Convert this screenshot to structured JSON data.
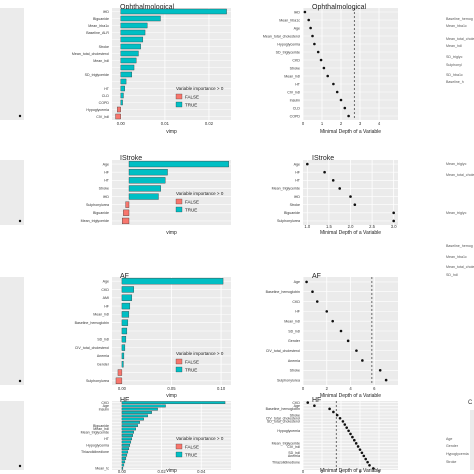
{
  "colors": {
    "panel_bg": "#ebebeb",
    "grid": "#ffffff",
    "false_fill": "#f8766d",
    "true_fill": "#00bfc4",
    "bar_outline": "#333333",
    "point": "#111111"
  },
  "legend": {
    "title": "Variable importance > 0",
    "false_label": "FALSE",
    "true_label": "TRUE",
    "placement": "bottom-right"
  },
  "chart_data": [
    {
      "type": "bar",
      "title": "Ophthalmological",
      "xlabel": "vimp",
      "xlim": [
        -0.002,
        0.025
      ],
      "xticks": [
        "0.00",
        "0.01",
        "0.02"
      ],
      "xtick_values": [
        0,
        0.01,
        0.02
      ],
      "categories": [
        "IHD",
        "Biguanide",
        "Mean_hba1c",
        "Baseline_ALR",
        "CKD",
        "Stroke",
        "Mean_total_cholesterol",
        "Mean_hdl",
        "Age",
        "SD_triglyceride",
        "Insulin",
        "HT",
        "CLD",
        "COPD",
        "Hypoglycemia",
        "CIV_hdl"
      ],
      "values": [
        0.024,
        0.009,
        0.006,
        0.0055,
        0.005,
        0.0045,
        0.004,
        0.0035,
        0.003,
        0.0025,
        0.0012,
        0.0009,
        0.0006,
        0.0004,
        -0.0008,
        -0.0012
      ],
      "labeled_categories": [
        "IHD",
        "Biguanide",
        "Mean_hba1c",
        "Baseline_ALR",
        "Stroke",
        "Mean_total_cholesterol",
        "Mean_hdl",
        "SD_triglyceride",
        "HT",
        "CLD",
        "COPD",
        "Hypoglycemia",
        "CIV_hdl"
      ],
      "importance_positive": [
        true,
        true,
        true,
        true,
        true,
        true,
        true,
        true,
        true,
        true,
        true,
        true,
        true,
        true,
        false,
        false
      ]
    },
    {
      "type": "scatter",
      "title": "Ophthalmological",
      "xlabel": "Minimal Depth of a Variable",
      "xlim": [
        0,
        5
      ],
      "xticks": [
        "0",
        "1",
        "2",
        "3",
        "4"
      ],
      "xtick_values": [
        0,
        1,
        2,
        3,
        4
      ],
      "threshold": 2.7,
      "categories": [
        "IHD",
        "Mean_hba1c",
        "Age",
        "Mean_total_cholesterol",
        "Hypoglycemia",
        "SD_triglyceride",
        "CKD",
        "Stroke",
        "Mean_hdl",
        "HT",
        "CIV_hdl",
        "Insulin",
        "CLD",
        "COPD"
      ],
      "labeled_categories": [
        "IHD",
        "Mean_hba1c",
        "Age",
        "Mean_total_cholesterol",
        "Hypoglycemia",
        "SD_triglyceride",
        "CKD",
        "Stroke",
        "Mean_hdl",
        "HT",
        "CIV_hdl",
        "Insulin",
        "CLD",
        "COPD"
      ],
      "values": [
        0.1,
        0.3,
        0.4,
        0.5,
        0.6,
        0.8,
        0.95,
        1.1,
        1.3,
        1.6,
        1.8,
        2.0,
        2.2,
        2.4
      ]
    },
    {
      "type": "bar",
      "title": "IStroke",
      "xlabel": "vimp",
      "xlim": [
        -0.015,
        0.09
      ],
      "xticks": [],
      "xtick_values": [],
      "categories": [
        "Age",
        "HF",
        "HT",
        "Stroke",
        "IHD",
        "Sulphonylurea",
        "Biguanide",
        "Mean_triglyceride"
      ],
      "values": [
        0.088,
        0.034,
        0.032,
        0.028,
        0.026,
        -0.003,
        -0.005,
        -0.006
      ],
      "labeled_categories": [
        "Age",
        "HF",
        "HT",
        "Stroke",
        "IHD",
        "Sulphonylurea",
        "Biguanide",
        "Mean_triglyceride"
      ],
      "importance_positive": [
        true,
        true,
        true,
        true,
        true,
        false,
        false,
        false
      ]
    },
    {
      "type": "scatter",
      "title": "IStroke",
      "xlabel": "Minimal Depth of a Variable",
      "xlim": [
        0.9,
        3.1
      ],
      "xticks": [
        "1.0",
        "1.5",
        "2.0",
        "2.5",
        "3.0"
      ],
      "xtick_values": [
        1.0,
        1.5,
        2.0,
        2.5,
        3.0
      ],
      "categories": [
        "Age",
        "HF",
        "HT",
        "Mean_triglyceride",
        "IHD",
        "Stroke",
        "Biguanide",
        "Sulphonylurea"
      ],
      "labeled_categories": [
        "Age",
        "HF",
        "HT",
        "Mean_triglyceride",
        "IHD",
        "Stroke",
        "Biguanide",
        "Sulphonylurea"
      ],
      "values": [
        1.0,
        1.4,
        1.6,
        1.75,
        2.0,
        2.1,
        3.0,
        3.0
      ]
    },
    {
      "type": "bar",
      "title": "AF",
      "xlabel": "vimp",
      "xlim": [
        -0.01,
        0.11
      ],
      "xticks": [
        "0.00",
        "0.05",
        "0.10"
      ],
      "xtick_values": [
        0,
        0.05,
        0.1
      ],
      "categories": [
        "Age",
        "CKD",
        "AMI",
        "HF",
        "Mean_hdl",
        "Baseline_hemoglobin",
        "Mean_tc/l",
        "SD_hdl",
        "CIV_total_cholesterol",
        "Anemia",
        "Gender",
        "Mean_hdl_2",
        "Sulphonylurea"
      ],
      "values": [
        0.102,
        0.012,
        0.01,
        0.008,
        0.007,
        0.006,
        0.005,
        0.004,
        0.003,
        0.002,
        0.0015,
        -0.004,
        -0.006
      ],
      "labeled_categories": [
        "Age",
        "CKD",
        "AMI",
        "HF",
        "Mean_hdl",
        "Baseline_hemoglobin",
        "SD_hdl",
        "CIV_total_cholesterol",
        "Anemia",
        "Gender",
        "Sulphonylurea"
      ],
      "importance_positive": [
        true,
        true,
        true,
        true,
        true,
        true,
        true,
        true,
        true,
        true,
        true,
        false,
        false
      ]
    },
    {
      "type": "scatter",
      "title": "AF",
      "xlabel": "Minimal Depth of a Variable",
      "xlim": [
        0,
        8
      ],
      "xticks": [
        "0",
        "2",
        "4",
        "6"
      ],
      "xtick_values": [
        0,
        2,
        4,
        6
      ],
      "threshold": 5.8,
      "categories": [
        "Age",
        "Baseline_hemoglobin",
        "CKD",
        "HF",
        "Mean_hdl",
        "SD_hdl",
        "Gender",
        "CIV_total_cholesterol",
        "Anemia",
        "Stroke",
        "Sulphonylurea"
      ],
      "labeled_categories": [
        "Age",
        "Baseline_hemoglobin",
        "CKD",
        "HF",
        "Mean_hdl",
        "SD_hdl",
        "Gender",
        "CIV_total_cholesterol",
        "Anemia",
        "Stroke",
        "Sulphonylurea"
      ],
      "values": [
        0.3,
        0.8,
        1.2,
        2.0,
        2.5,
        3.2,
        3.8,
        4.5,
        5.0,
        6.5,
        7.0
      ]
    },
    {
      "type": "bar",
      "title": "HF",
      "xlabel": "vimp",
      "xlim": [
        -0.005,
        0.055
      ],
      "xticks": [
        "0.00",
        "0.02",
        "0.04"
      ],
      "xtick_values": [
        0,
        0.02,
        0.04
      ],
      "categories": [
        "CKD",
        "Age",
        "Insulin",
        "IHD",
        "Gender",
        "Stroke",
        "SD_total_cholesterol",
        "Biguanide",
        "Mean_hdl",
        "Mean_triglyceride",
        "SD_hba1c",
        "HT",
        "Mean_hba1c",
        "Hypoglycemia",
        "Baseline_ALR",
        "Thiazolidinedione",
        "CIV_total",
        "Mean_total",
        "SD_hdl",
        "Anemia",
        "Mean_tc"
      ],
      "values": [
        0.052,
        0.022,
        0.018,
        0.015,
        0.013,
        0.011,
        0.009,
        0.008,
        0.007,
        0.006,
        0.0055,
        0.005,
        0.0045,
        0.004,
        0.0035,
        0.003,
        0.0025,
        0.002,
        0.0015,
        0.001,
        0.0005
      ],
      "labeled_categories": [
        "CKD",
        "Age",
        "Insulin",
        "Biguanide",
        "Mean_hdl",
        "Mean_triglyceride",
        "HT",
        "Hypoglycemia",
        "Thiazolidinedione",
        "Mean_tc"
      ],
      "importance_positive": [
        true,
        true,
        true,
        true,
        true,
        true,
        true,
        true,
        true,
        true,
        true,
        true,
        true,
        true,
        true,
        true,
        true,
        true,
        true,
        true,
        true
      ]
    },
    {
      "type": "scatter",
      "title": "HF",
      "xlabel": "Minimal Depth of a Variable",
      "xlim": [
        0,
        10
      ],
      "xticks": [
        "0",
        "2",
        "4",
        "6",
        "8"
      ],
      "xtick_values": [
        0,
        2,
        4,
        6,
        8
      ],
      "threshold": 3.5,
      "categories": [
        "CKD",
        "Age",
        "Baseline_hemoglobin",
        "Mean_hba1c",
        "Stroke",
        "CIV_total_cholesterol",
        "SD_total_cholesterol",
        "Mean_hdl",
        "HT",
        "Hypoglycemia",
        "SD_hba1c",
        "Biguanide",
        "Gender",
        "Mean_triglyceride",
        "CIV_hdl",
        "Mean_total_cholesterol",
        "SD_hdl",
        "Anemia",
        "Insulin",
        "Thiazolidinedione",
        "IHD",
        "COPD"
      ],
      "labeled_categories": [
        "CKD",
        "Age",
        "Baseline_hemoglobin",
        "Stroke",
        "CIV_total_cholesterol",
        "SD_total_cholesterol",
        "Hypoglycemia",
        "Mean_triglyceride",
        "CIV_hdl",
        "SD_hdl",
        "Anemia",
        "Thiazolidinedione"
      ],
      "values": [
        0.5,
        1.2,
        2.8,
        3.2,
        3.6,
        3.9,
        4.2,
        4.4,
        4.6,
        4.8,
        5.0,
        5.2,
        5.4,
        5.6,
        5.8,
        6.0,
        6.2,
        6.4,
        6.6,
        6.8,
        7.0,
        7.4
      ]
    },
    {
      "type": "scatter",
      "title": "",
      "xlabel": "",
      "xlim": [
        0,
        10
      ],
      "xticks": [
        "2",
        "4",
        "6"
      ],
      "xtick_values": [
        2,
        4,
        6
      ],
      "categories": [],
      "labeled_categories": [],
      "values": [],
      "partial": "right-edge",
      "labels": [
        "Baseline_hemog",
        "Mean_hba1c",
        "Mean_total_chole",
        "Mean_hdl",
        "SD_triglyc",
        "Sulphonyl",
        "SD_hba1c",
        "Baseline_h",
        "Mean_triglyc",
        "Mean_total_chole",
        "Mean_triglyc",
        "Baseline_hemog",
        "Mean_hba1c",
        "Mean_total_chole",
        "SD_hdl",
        "Age",
        "Gender",
        "Hypoglycemia",
        "Stroke"
      ]
    }
  ]
}
